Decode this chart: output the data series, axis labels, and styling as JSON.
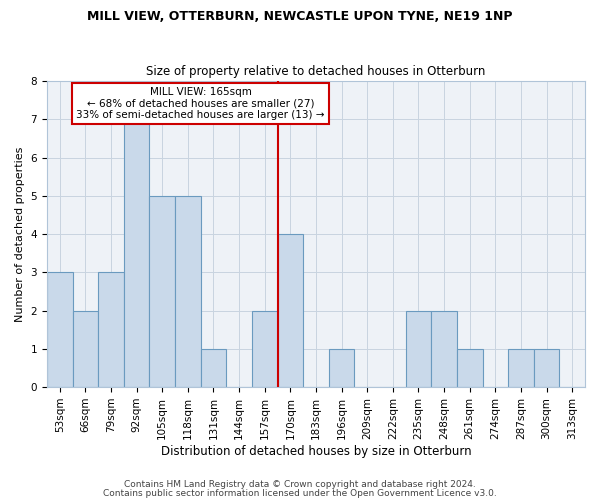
{
  "title": "MILL VIEW, OTTERBURN, NEWCASTLE UPON TYNE, NE19 1NP",
  "subtitle": "Size of property relative to detached houses in Otterburn",
  "xlabel": "Distribution of detached houses by size in Otterburn",
  "ylabel": "Number of detached properties",
  "footnote1": "Contains HM Land Registry data © Crown copyright and database right 2024.",
  "footnote2": "Contains public sector information licensed under the Open Government Licence v3.0.",
  "bin_labels": [
    "53sqm",
    "66sqm",
    "79sqm",
    "92sqm",
    "105sqm",
    "118sqm",
    "131sqm",
    "144sqm",
    "157sqm",
    "170sqm",
    "183sqm",
    "196sqm",
    "209sqm",
    "222sqm",
    "235sqm",
    "248sqm",
    "261sqm",
    "274sqm",
    "287sqm",
    "300sqm",
    "313sqm"
  ],
  "counts": [
    3,
    2,
    3,
    7,
    5,
    5,
    1,
    0,
    2,
    4,
    0,
    1,
    0,
    0,
    2,
    2,
    1,
    0,
    1,
    1,
    0
  ],
  "bar_color": "#c9d9ea",
  "bar_edge_color": "#6a9abf",
  "reference_label": "MILL VIEW: 165sqm",
  "annotation_line1": "← 68% of detached houses are smaller (27)",
  "annotation_line2": "33% of semi-detached houses are larger (13) →",
  "annotation_box_color": "#ffffff",
  "annotation_box_edge": "#cc0000",
  "ref_line_color": "#cc0000",
  "ref_line_bin_index": 8,
  "ylim": [
    0,
    8
  ],
  "yticks": [
    0,
    1,
    2,
    3,
    4,
    5,
    6,
    7,
    8
  ],
  "bg_color": "#eef2f7",
  "title_fontsize": 9,
  "subtitle_fontsize": 8.5,
  "tick_fontsize": 7.5,
  "ylabel_fontsize": 8,
  "xlabel_fontsize": 8.5,
  "footnote_fontsize": 6.5
}
